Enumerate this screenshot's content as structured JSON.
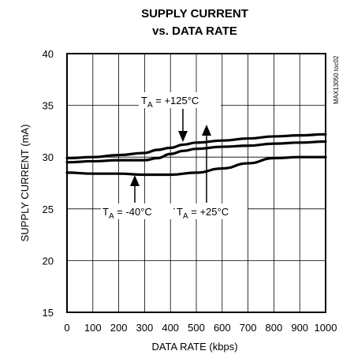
{
  "chart_data": {
    "type": "line",
    "title_line1": "SUPPLY CURRENT",
    "title_line2": "vs. DATA RATE",
    "xlabel": "DATA RATE (kbps)",
    "ylabel": "SUPPLY CURRENT (mA)",
    "xlim": [
      0,
      1000
    ],
    "ylim": [
      15,
      40
    ],
    "x_ticks": [
      "0",
      "100",
      "200",
      "300",
      "400",
      "500",
      "600",
      "700",
      "800",
      "900",
      "1000"
    ],
    "y_ticks": [
      "15",
      "20",
      "25",
      "30",
      "35",
      "40"
    ],
    "grid": true,
    "side_code": "MAX13050 toc02",
    "series": [
      {
        "name": "TA = +125°C",
        "x": [
          0,
          100,
          200,
          300,
          350,
          400,
          450,
          500,
          600,
          700,
          800,
          900,
          1000
        ],
        "values": [
          29.9,
          30.0,
          30.2,
          30.4,
          30.7,
          30.9,
          31.2,
          31.4,
          31.6,
          31.8,
          32.0,
          32.1,
          32.2
        ]
      },
      {
        "name": "TA = +25°C",
        "x": [
          0,
          100,
          200,
          300,
          350,
          400,
          450,
          500,
          600,
          700,
          800,
          900,
          1000
        ],
        "values": [
          29.5,
          29.6,
          29.7,
          29.7,
          29.9,
          30.3,
          30.6,
          30.8,
          31.0,
          31.1,
          31.3,
          31.4,
          31.5
        ]
      },
      {
        "name": "TA = -40°C",
        "x": [
          0,
          100,
          200,
          300,
          400,
          500,
          600,
          700,
          800,
          900,
          1000
        ],
        "values": [
          28.5,
          28.4,
          28.4,
          28.3,
          28.3,
          28.5,
          28.9,
          29.4,
          29.9,
          30.0,
          30.0
        ]
      }
    ],
    "annotations": [
      {
        "text": "T",
        "sub": "A",
        "rest": " = +125°C",
        "series": "TA = +125°C"
      },
      {
        "text": "T",
        "sub": "A",
        "rest": " = -40°C",
        "series": "TA = -40°C"
      },
      {
        "text": "T",
        "sub": "A",
        "rest": " = +25°C",
        "series": "TA = +25°C"
      }
    ]
  }
}
